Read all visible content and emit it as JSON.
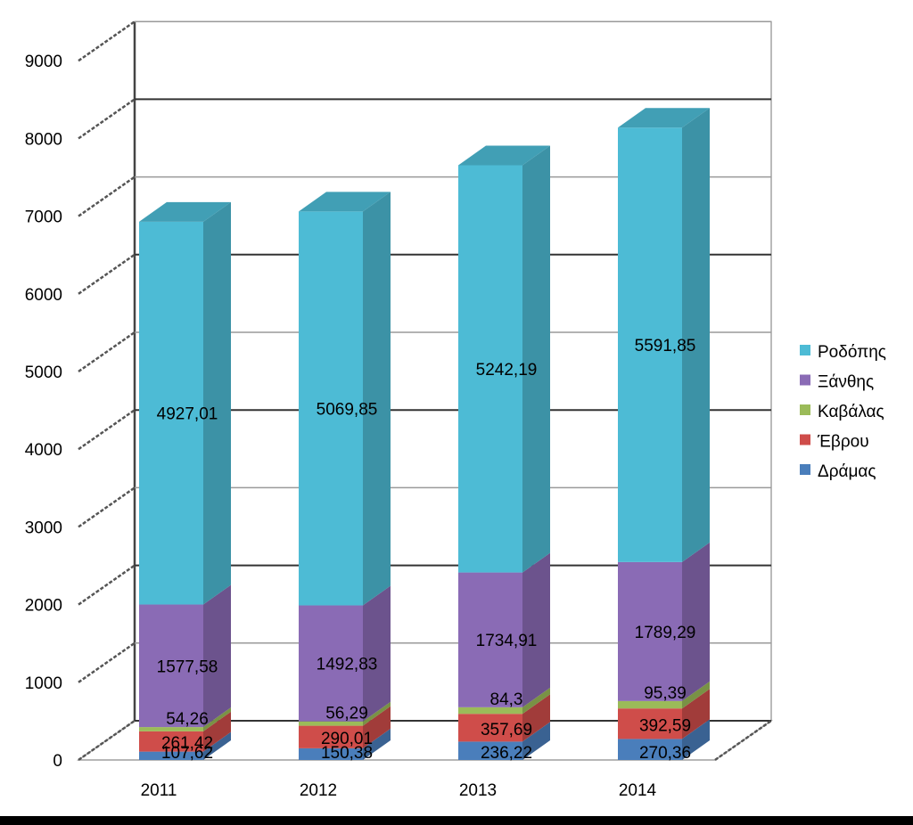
{
  "chart_data": {
    "type": "bar",
    "stacked": true,
    "three_d": true,
    "categories": [
      "2011",
      "2012",
      "2013",
      "2014"
    ],
    "series": [
      {
        "name": "Δράμας",
        "values": [
          107.62,
          150.38,
          236.22,
          270.36
        ],
        "labels": [
          "107,62",
          "150,38",
          "236,22",
          "270,36"
        ],
        "color": "#4A7EBB"
      },
      {
        "name": "Έβρου",
        "values": [
          261.42,
          290.01,
          357.69,
          392.59
        ],
        "labels": [
          "261,42",
          "290,01",
          "357,69",
          "392,59"
        ],
        "color": "#CF4D4A"
      },
      {
        "name": "Καβάλας",
        "values": [
          54.26,
          56.29,
          84.3,
          95.39
        ],
        "labels": [
          "54,26",
          "56,29",
          "84,3",
          "95,39"
        ],
        "color": "#9BBB59"
      },
      {
        "name": "Ξάνθης",
        "values": [
          1577.58,
          1492.83,
          1734.91,
          1789.29
        ],
        "labels": [
          "1577,58",
          "1492,83",
          "1734,91",
          "1789,29"
        ],
        "color": "#8A6BB5"
      },
      {
        "name": "Ροδόπης",
        "values": [
          4927.01,
          5069.85,
          5242.19,
          5591.85
        ],
        "labels": [
          "4927,01",
          "5069,85",
          "5242,19",
          "5591,85"
        ],
        "color": "#4DBBD5"
      }
    ],
    "yticks": [
      "0",
      "1000",
      "2000",
      "3000",
      "4000",
      "5000",
      "6000",
      "7000",
      "8000",
      "9000"
    ],
    "ylim": [
      0,
      9000
    ],
    "grid": true,
    "legend_position": "right"
  }
}
